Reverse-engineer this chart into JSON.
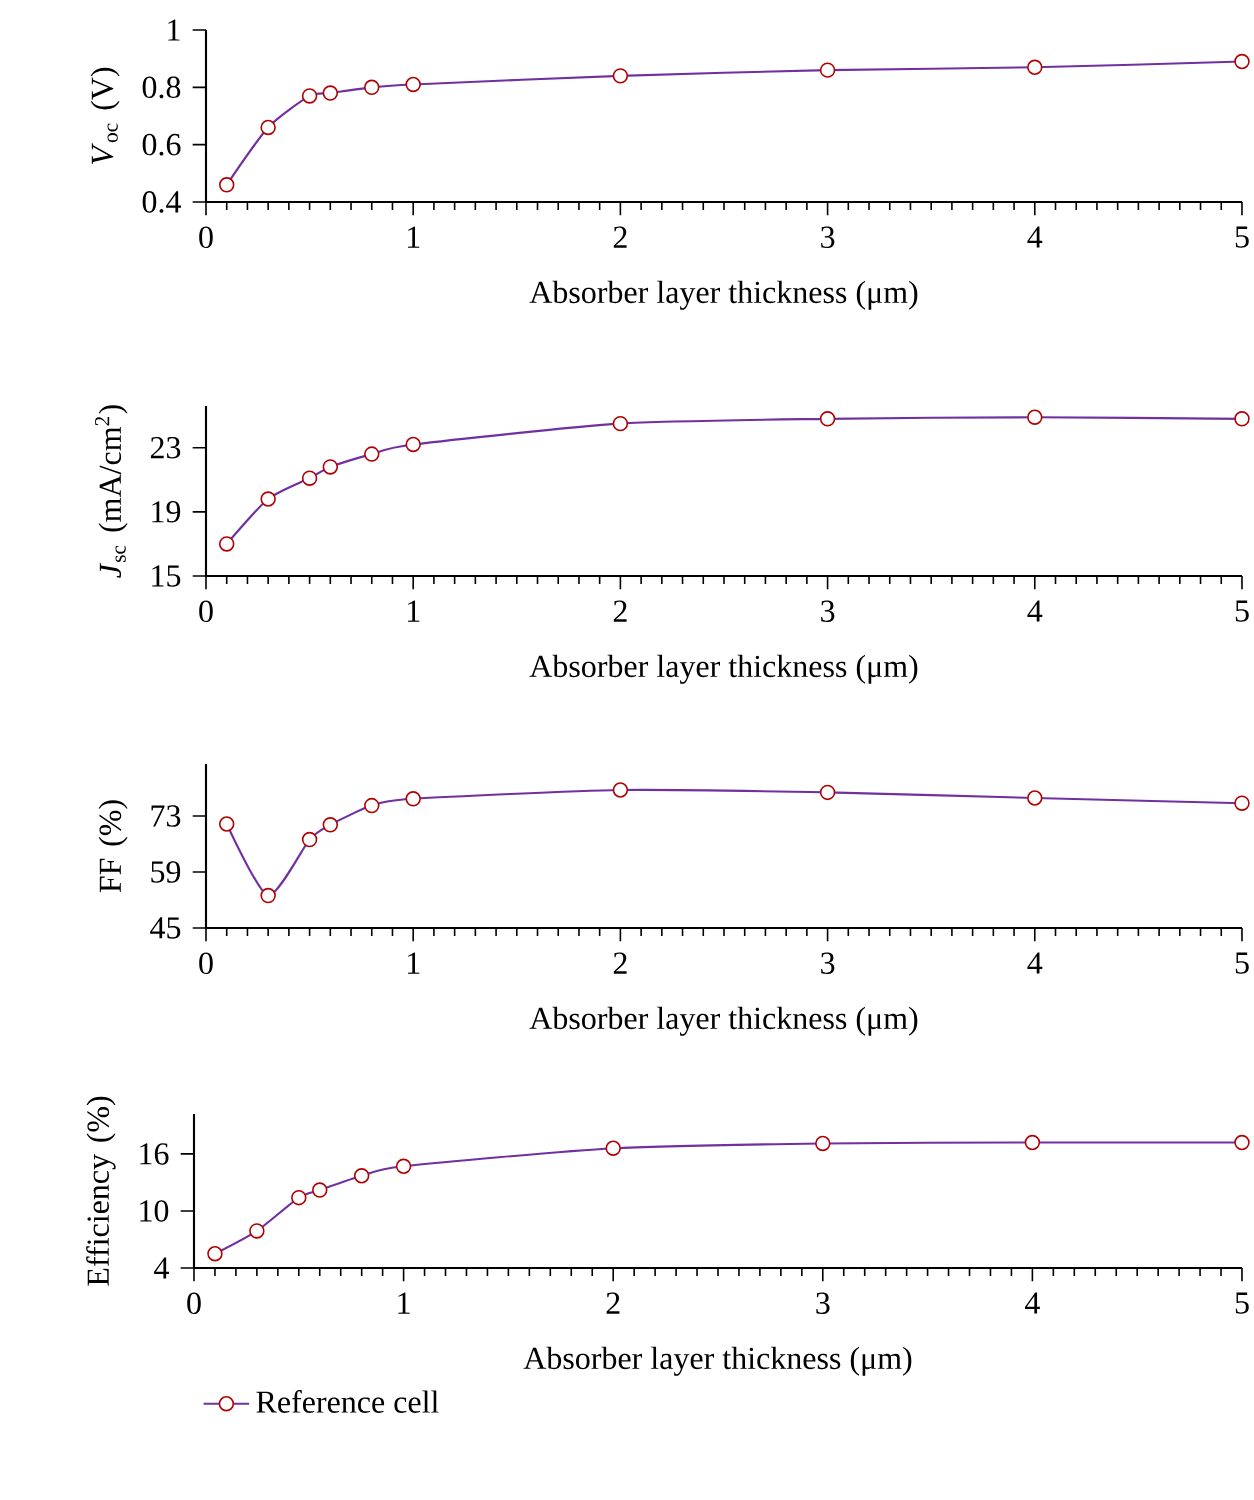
{
  "chart_data": [
    {
      "type": "line",
      "xlabel": "Absorber layer thickness (μm)",
      "ylabel": "*V*$_{oc}$ (V)",
      "x": [
        0.1,
        0.3,
        0.5,
        0.6,
        0.8,
        1,
        2,
        3,
        4,
        5
      ],
      "xlim": [
        0,
        5
      ],
      "xticks": [
        0,
        1,
        2,
        3,
        4,
        5
      ],
      "ylim": [
        0.4,
        1
      ],
      "yticks": [
        0.4,
        0.6,
        0.8,
        1
      ],
      "marker": "circle",
      "legend": false,
      "series": [
        {
          "color": "#7030a0",
          "values": [
            0.46,
            0.66,
            0.77,
            0.78,
            0.8,
            0.81,
            0.84,
            0.86,
            0.87,
            0.89
          ]
        }
      ]
    },
    {
      "type": "line",
      "xlabel": "Absorber layer thickness (μm)",
      "ylabel": "*J*$_{sc}$ (mA/cm$^{2}$)",
      "x": [
        0.1,
        0.3,
        0.5,
        0.6,
        0.8,
        1,
        2,
        3,
        4,
        5
      ],
      "xlim": [
        0,
        5
      ],
      "xticks": [
        0,
        1,
        2,
        3,
        4,
        5
      ],
      "ylim": [
        15,
        25.6
      ],
      "yticks": [
        15,
        19,
        23
      ],
      "marker": "circle",
      "legend": false,
      "series": [
        {
          "color": "#7030a0",
          "values": [
            17.0,
            19.8,
            21.1,
            21.8,
            22.6,
            23.2,
            24.5,
            24.8,
            24.9,
            24.8
          ]
        }
      ]
    },
    {
      "type": "line",
      "xlabel": "Absorber layer thickness (μm)",
      "ylabel": "FF (%)",
      "x": [
        0.1,
        0.3,
        0.5,
        0.6,
        0.8,
        1,
        2,
        3,
        4,
        5
      ],
      "xlim": [
        0,
        5
      ],
      "xticks": [
        0,
        1,
        2,
        3,
        4,
        5
      ],
      "ylim": [
        45,
        86
      ],
      "yticks": [
        45,
        59,
        73
      ],
      "marker": "circle",
      "legend": false,
      "series": [
        {
          "color": "#7030a0",
          "values": [
            71.0,
            53.1,
            67.1,
            70.8,
            75.6,
            77.3,
            79.5,
            78.9,
            77.5,
            76.2
          ]
        }
      ]
    },
    {
      "type": "line",
      "xlabel": "Absorber layer thickness (μm)",
      "ylabel": "Efficiency (%)",
      "x": [
        0.1,
        0.3,
        0.5,
        0.6,
        0.8,
        1,
        2,
        3,
        4,
        5
      ],
      "xlim": [
        0,
        5
      ],
      "xticks": [
        0,
        1,
        2,
        3,
        4,
        5
      ],
      "ylim": [
        4,
        20.2
      ],
      "yticks": [
        4,
        10,
        16
      ],
      "marker": "circle",
      "legend": "bottom",
      "series": [
        {
          "name": "Reference cell",
          "color": "#7030a0",
          "values": [
            5.5,
            7.9,
            11.4,
            12.2,
            13.7,
            14.7,
            16.6,
            17.1,
            17.2,
            17.2
          ]
        }
      ]
    }
  ]
}
